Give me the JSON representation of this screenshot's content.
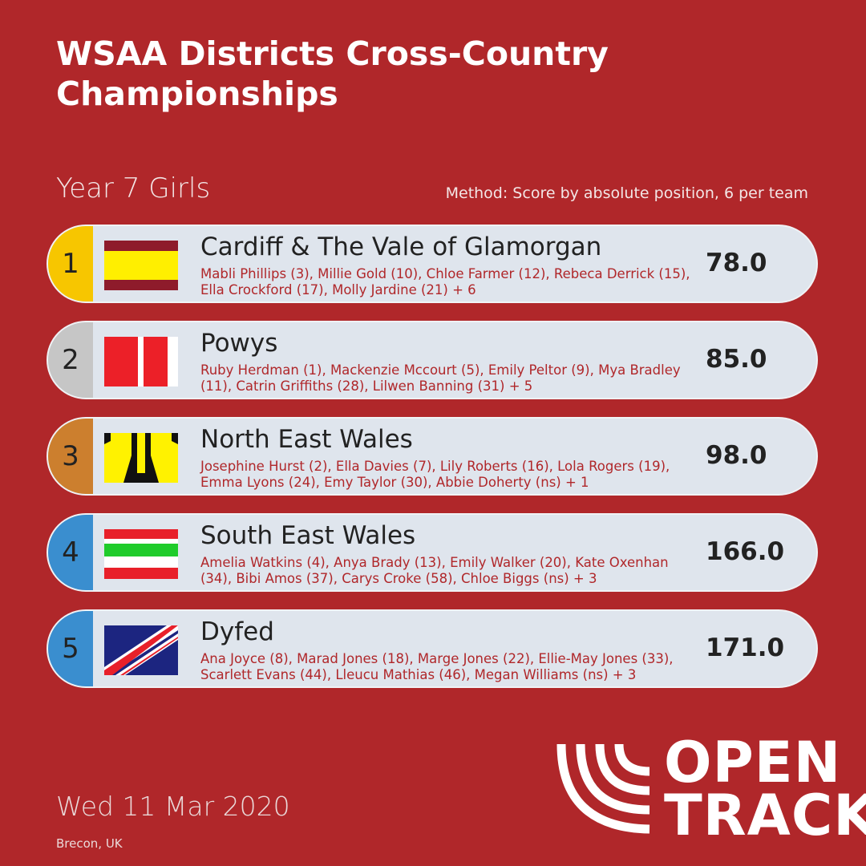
{
  "header": {
    "title_line1": "WSAA Districts Cross-Country",
    "title_line2": "Championships",
    "subtitle": "Year 7 Girls",
    "method": "Method: Score by absolute position, 6 per team"
  },
  "teams": [
    {
      "rank": "1",
      "name": "Cardiff & The Vale of Glamorgan",
      "members": "Mabli Phillips (3), Millie Gold (10), Chloe Farmer (12), Rebeca Derrick (15), Ella Crockford (17), Molly Jardine (21) + 6",
      "score": "78.0"
    },
    {
      "rank": "2",
      "name": "Powys",
      "members": "Ruby Herdman (1), Mackenzie Mccourt (5), Emily Peltor (9), Mya Bradley (11), Catrin Griffiths (28), Lilwen Banning (31) + 5",
      "score": "85.0"
    },
    {
      "rank": "3",
      "name": "North East Wales",
      "members": "Josephine Hurst (2), Ella Davies (7), Lily Roberts (16), Lola Rogers (19), Emma Lyons (24), Emy Taylor (30), Abbie Doherty (ns) + 1",
      "score": "98.0"
    },
    {
      "rank": "4",
      "name": "South East Wales",
      "members": "Amelia Watkins (4), Anya Brady (13), Emily Walker (20), Kate Oxenhan (34), Bibi Amos (37), Carys Croke (58), Chloe Biggs (ns) + 3",
      "score": "166.0"
    },
    {
      "rank": "5",
      "name": "Dyfed",
      "members": "Ana Joyce (8), Marad Jones (18), Marge Jones (22), Ellie-May Jones (33), Scarlett Evans (44), Lleucu Mathias (46), Megan Williams (ns) + 3",
      "score": "171.0"
    }
  ],
  "footer": {
    "date": "Wed 11 Mar 2020",
    "location": "Brecon, UK",
    "logo_line1": "OPEN",
    "logo_line2": "TRACK"
  }
}
